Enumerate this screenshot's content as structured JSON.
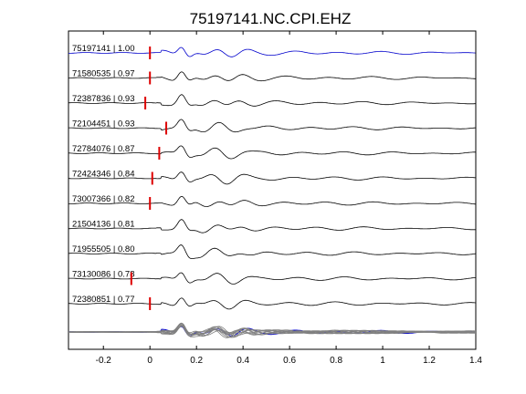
{
  "chart_data": {
    "type": "line",
    "title": "75197141.NC.CPI.EHZ",
    "xlim": [
      -0.35,
      1.4
    ],
    "xticks": [
      -0.2,
      0,
      0.2,
      0.4,
      0.6,
      0.8,
      1,
      1.2,
      1.4
    ],
    "xtick_labels": [
      "-0.2",
      "0",
      "0.2",
      "0.4",
      "0.6",
      "0.8",
      "1",
      "1.2",
      "1.4"
    ],
    "grid": false,
    "colors": {
      "reference": "#0000cc",
      "trace": "#000000",
      "overlay": "#808080",
      "pick": "#dd0000"
    },
    "series": [
      {
        "name": "75197141 | 1.00",
        "pick": 0.0,
        "reference": true
      },
      {
        "name": "71580535 | 0.97",
        "pick": 0.0
      },
      {
        "name": "72387836 | 0.93",
        "pick": -0.02
      },
      {
        "name": "72104451 | 0.93",
        "pick": 0.07
      },
      {
        "name": "72784076 | 0.87",
        "pick": 0.04
      },
      {
        "name": "72424346 | 0.84",
        "pick": 0.01
      },
      {
        "name": "73007366 | 0.82",
        "pick": 0.0
      },
      {
        "name": "21504136 | 0.81",
        "pick": null
      },
      {
        "name": "71955505 | 0.80",
        "pick": null
      },
      {
        "name": "73130086 | 0.78",
        "pick": -0.08
      },
      {
        "name": "72380851 | 0.77",
        "pick": 0.0
      }
    ],
    "stack_overlay": true
  }
}
